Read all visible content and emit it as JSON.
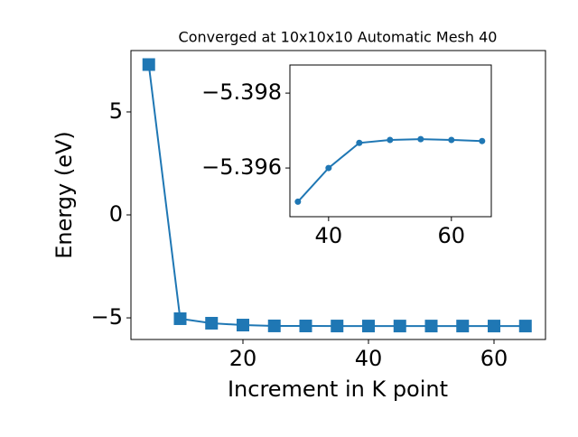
{
  "chart_data": [
    {
      "type": "line",
      "title": "Converged at 10x10x10 Automatic Mesh 40",
      "x_label": "Increment in K point",
      "y_label": "Energy (eV)",
      "x": [
        5,
        10,
        15,
        20,
        25,
        30,
        35,
        40,
        45,
        50,
        55,
        60,
        65
      ],
      "series": [
        {
          "color": "#1f77b4",
          "marker": "square",
          "values": [
            7.3,
            -5.04,
            -5.26,
            -5.35,
            -5.39,
            -5.393,
            -5.3951,
            -5.396,
            -5.39667,
            -5.39675,
            -5.39677,
            -5.39675,
            -5.39672
          ]
        }
      ],
      "xlim": [
        2.16,
        68.2
      ],
      "ylim": [
        -6.05,
        7.98
      ],
      "xticks": [
        20,
        40,
        60
      ],
      "yticks": [
        {
          "value": -5,
          "label": "−5"
        },
        0,
        5
      ]
    },
    {
      "type": "line",
      "x": [
        35,
        40,
        45,
        50,
        55,
        60,
        65
      ],
      "series": [
        {
          "color": "#1f77b4",
          "marker": "circle",
          "values": [
            -5.3951,
            -5.396,
            -5.39667,
            -5.39675,
            -5.39677,
            -5.39675,
            -5.39672
          ]
        }
      ],
      "xlim": [
        33.7,
        66.5
      ],
      "ylim": [
        -5.3947,
        -5.39875
      ],
      "xticks": [
        40,
        60
      ],
      "yticks": [
        {
          "value": -5.396,
          "label": "−5.396"
        },
        {
          "value": -5.398,
          "label": "−5.398"
        }
      ]
    }
  ]
}
